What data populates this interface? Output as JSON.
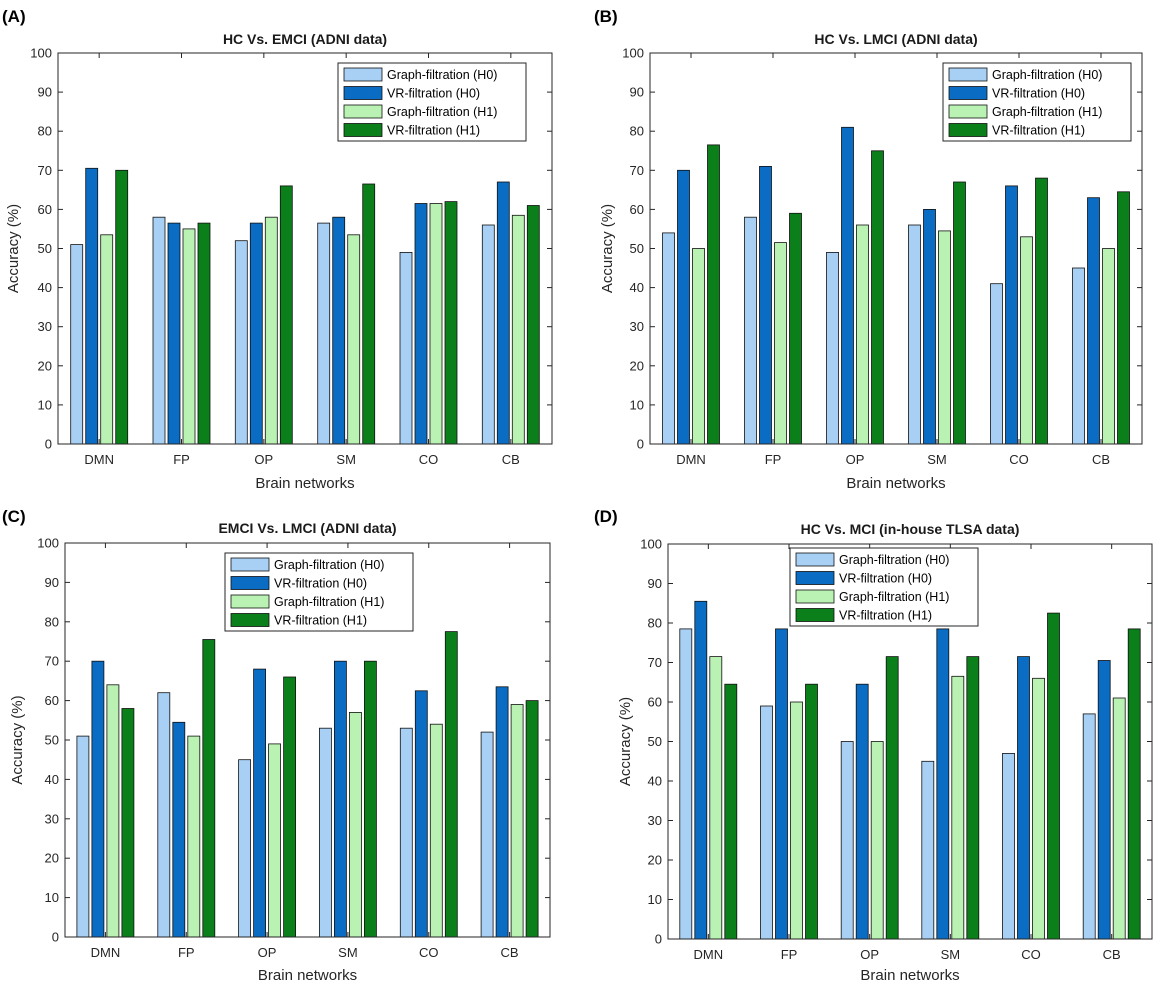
{
  "chart_data": [
    {
      "type": "bar",
      "panel_label": "(A)",
      "title": "HC Vs. EMCI (ADNI data)",
      "xlabel": "Brain networks",
      "ylabel": "Accuracy (%)",
      "ylim": [
        0,
        100
      ],
      "yticks": [
        "0",
        "10",
        "20",
        "30",
        "40",
        "50",
        "60",
        "70",
        "80",
        "90",
        "100"
      ],
      "grid": false,
      "legend_position": "top-right",
      "categories": [
        "DMN",
        "FP",
        "OP",
        "SM",
        "CO",
        "CB"
      ],
      "series": [
        {
          "name": "Graph-filtration (H0)",
          "color": "#a8d0f5",
          "values": [
            51,
            58,
            52,
            56.5,
            49,
            56
          ]
        },
        {
          "name": "VR-filtration (H0)",
          "color": "#0a6cc3",
          "values": [
            70.5,
            56.5,
            56.5,
            58,
            61.5,
            67
          ]
        },
        {
          "name": "Graph-filtration (H1)",
          "color": "#b9f2b3",
          "values": [
            53.5,
            55,
            58,
            53.5,
            61.5,
            58.5
          ]
        },
        {
          "name": "VR-filtration (H1)",
          "color": "#0b7f1a",
          "values": [
            70,
            56.5,
            66,
            66.5,
            62,
            61
          ]
        }
      ]
    },
    {
      "type": "bar",
      "panel_label": "(B)",
      "title": "HC Vs. LMCI (ADNI data)",
      "xlabel": "Brain networks",
      "ylabel": "Accuracy (%)",
      "ylim": [
        0,
        100
      ],
      "yticks": [
        "0",
        "10",
        "20",
        "30",
        "40",
        "50",
        "60",
        "70",
        "80",
        "90",
        "100"
      ],
      "grid": false,
      "legend_position": "top-right",
      "categories": [
        "DMN",
        "FP",
        "OP",
        "SM",
        "CO",
        "CB"
      ],
      "series": [
        {
          "name": "Graph-filtration (H0)",
          "color": "#a8d0f5",
          "values": [
            54,
            58,
            49,
            56,
            41,
            45
          ]
        },
        {
          "name": "VR-filtration (H0)",
          "color": "#0a6cc3",
          "values": [
            70,
            71,
            81,
            60,
            66,
            63
          ]
        },
        {
          "name": "Graph-filtration (H1)",
          "color": "#b9f2b3",
          "values": [
            50,
            51.5,
            56,
            54.5,
            53,
            50
          ]
        },
        {
          "name": "VR-filtration (H1)",
          "color": "#0b7f1a",
          "values": [
            76.5,
            59,
            75,
            67,
            68,
            64.5
          ]
        }
      ]
    },
    {
      "type": "bar",
      "panel_label": "(C)",
      "title": "EMCI Vs. LMCI (ADNI data)",
      "xlabel": "Brain networks",
      "ylabel": "Accuracy (%)",
      "ylim": [
        0,
        100
      ],
      "yticks": [
        "0",
        "10",
        "20",
        "30",
        "40",
        "50",
        "60",
        "70",
        "80",
        "90",
        "100"
      ],
      "grid": false,
      "legend_position": "top-center",
      "categories": [
        "DMN",
        "FP",
        "OP",
        "SM",
        "CO",
        "CB"
      ],
      "series": [
        {
          "name": "Graph-filtration (H0)",
          "color": "#a8d0f5",
          "values": [
            51,
            62,
            45,
            53,
            53,
            52
          ]
        },
        {
          "name": "VR-filtration (H0)",
          "color": "#0a6cc3",
          "values": [
            70,
            54.5,
            68,
            70,
            62.5,
            63.5
          ]
        },
        {
          "name": "Graph-filtration (H1)",
          "color": "#b9f2b3",
          "values": [
            64,
            51,
            49,
            57,
            54,
            59
          ]
        },
        {
          "name": "VR-filtration (H1)",
          "color": "#0b7f1a",
          "values": [
            58,
            75.5,
            66,
            70,
            77.5,
            60
          ]
        }
      ]
    },
    {
      "type": "bar",
      "panel_label": "(D)",
      "title": "HC Vs. MCI (in-house TLSA data)",
      "xlabel": "Brain networks",
      "ylabel": "Accuracy (%)",
      "ylim": [
        0,
        100
      ],
      "yticks": [
        "0",
        "10",
        "20",
        "30",
        "40",
        "50",
        "60",
        "70",
        "80",
        "90",
        "100"
      ],
      "grid": false,
      "legend_position": "top-left",
      "categories": [
        "DMN",
        "FP",
        "OP",
        "SM",
        "CO",
        "CB"
      ],
      "series": [
        {
          "name": "Graph-filtration (H0)",
          "color": "#a8d0f5",
          "values": [
            78.5,
            59,
            50,
            45,
            47,
            57
          ]
        },
        {
          "name": "VR-filtration (H0)",
          "color": "#0a6cc3",
          "values": [
            85.5,
            78.5,
            64.5,
            78.5,
            71.5,
            70.5
          ]
        },
        {
          "name": "Graph-filtration (H1)",
          "color": "#b9f2b3",
          "values": [
            71.5,
            60,
            50,
            66.5,
            66,
            61
          ]
        },
        {
          "name": "VR-filtration (H1)",
          "color": "#0b7f1a",
          "values": [
            64.5,
            64.5,
            71.5,
            71.5,
            82.5,
            78.5
          ]
        }
      ]
    }
  ]
}
